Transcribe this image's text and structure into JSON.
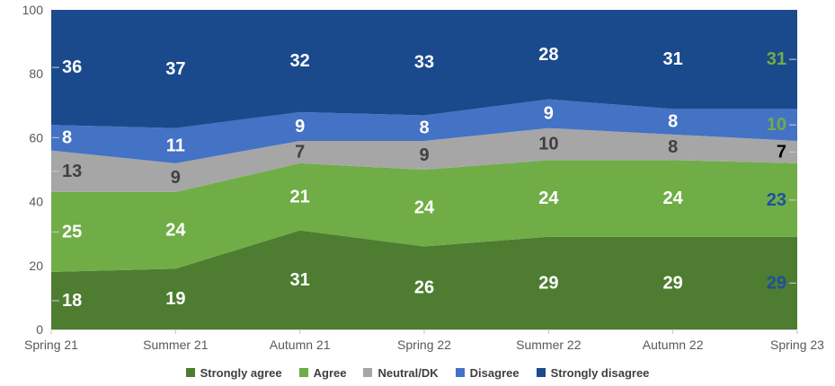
{
  "chart_data": {
    "type": "area",
    "stacked": true,
    "title": "",
    "xlabel": "",
    "ylabel": "",
    "categories": [
      "Spring 21",
      "Summer 21",
      "Autumn 21",
      "Spring 22",
      "Summer 22",
      "Autumn 22",
      "Spring 23"
    ],
    "series": [
      {
        "name": "Strongly agree",
        "color": "#4E7C31",
        "values": [
          18,
          19,
          31,
          26,
          29,
          29,
          29
        ],
        "label_colors": [
          "#FFFFFF",
          "#FFFFFF",
          "#FFFFFF",
          "#FFFFFF",
          "#FFFFFF",
          "#FFFFFF",
          "#1E4FA0"
        ]
      },
      {
        "name": "Agree",
        "color": "#70AD47",
        "values": [
          25,
          24,
          21,
          24,
          24,
          24,
          23
        ],
        "label_colors": [
          "#FFFFFF",
          "#FFFFFF",
          "#FFFFFF",
          "#FFFFFF",
          "#FFFFFF",
          "#FFFFFF",
          "#1E4FA0"
        ]
      },
      {
        "name": "Neutral/DK",
        "color": "#A6A6A6",
        "values": [
          13,
          9,
          7,
          9,
          10,
          8,
          7
        ],
        "label_colors": [
          "#404040",
          "#404040",
          "#404040",
          "#404040",
          "#404040",
          "#404040",
          "#000000"
        ]
      },
      {
        "name": "Disagree",
        "color": "#4472C4",
        "values": [
          8,
          11,
          9,
          8,
          9,
          8,
          10
        ],
        "label_colors": [
          "#FFFFFF",
          "#FFFFFF",
          "#FFFFFF",
          "#FFFFFF",
          "#FFFFFF",
          "#FFFFFF",
          "#70AD47"
        ]
      },
      {
        "name": "Strongly disagree",
        "color": "#1B4A8C",
        "values": [
          36,
          37,
          32,
          33,
          28,
          31,
          31
        ],
        "label_colors": [
          "#FFFFFF",
          "#FFFFFF",
          "#FFFFFF",
          "#FFFFFF",
          "#FFFFFF",
          "#FFFFFF",
          "#70AD47"
        ]
      }
    ],
    "y_axis": {
      "min": 0,
      "max": 100,
      "ticks": [
        0,
        20,
        40,
        60,
        80,
        100
      ]
    },
    "grid": false,
    "legend_position": "bottom",
    "colors": {
      "axis_text": "#595959",
      "tick_mark": "#C0C0C0",
      "axis_line": "#D9D9D9",
      "leader_line": "#CCCCCC",
      "legend_text": "#3F3F3F"
    }
  }
}
